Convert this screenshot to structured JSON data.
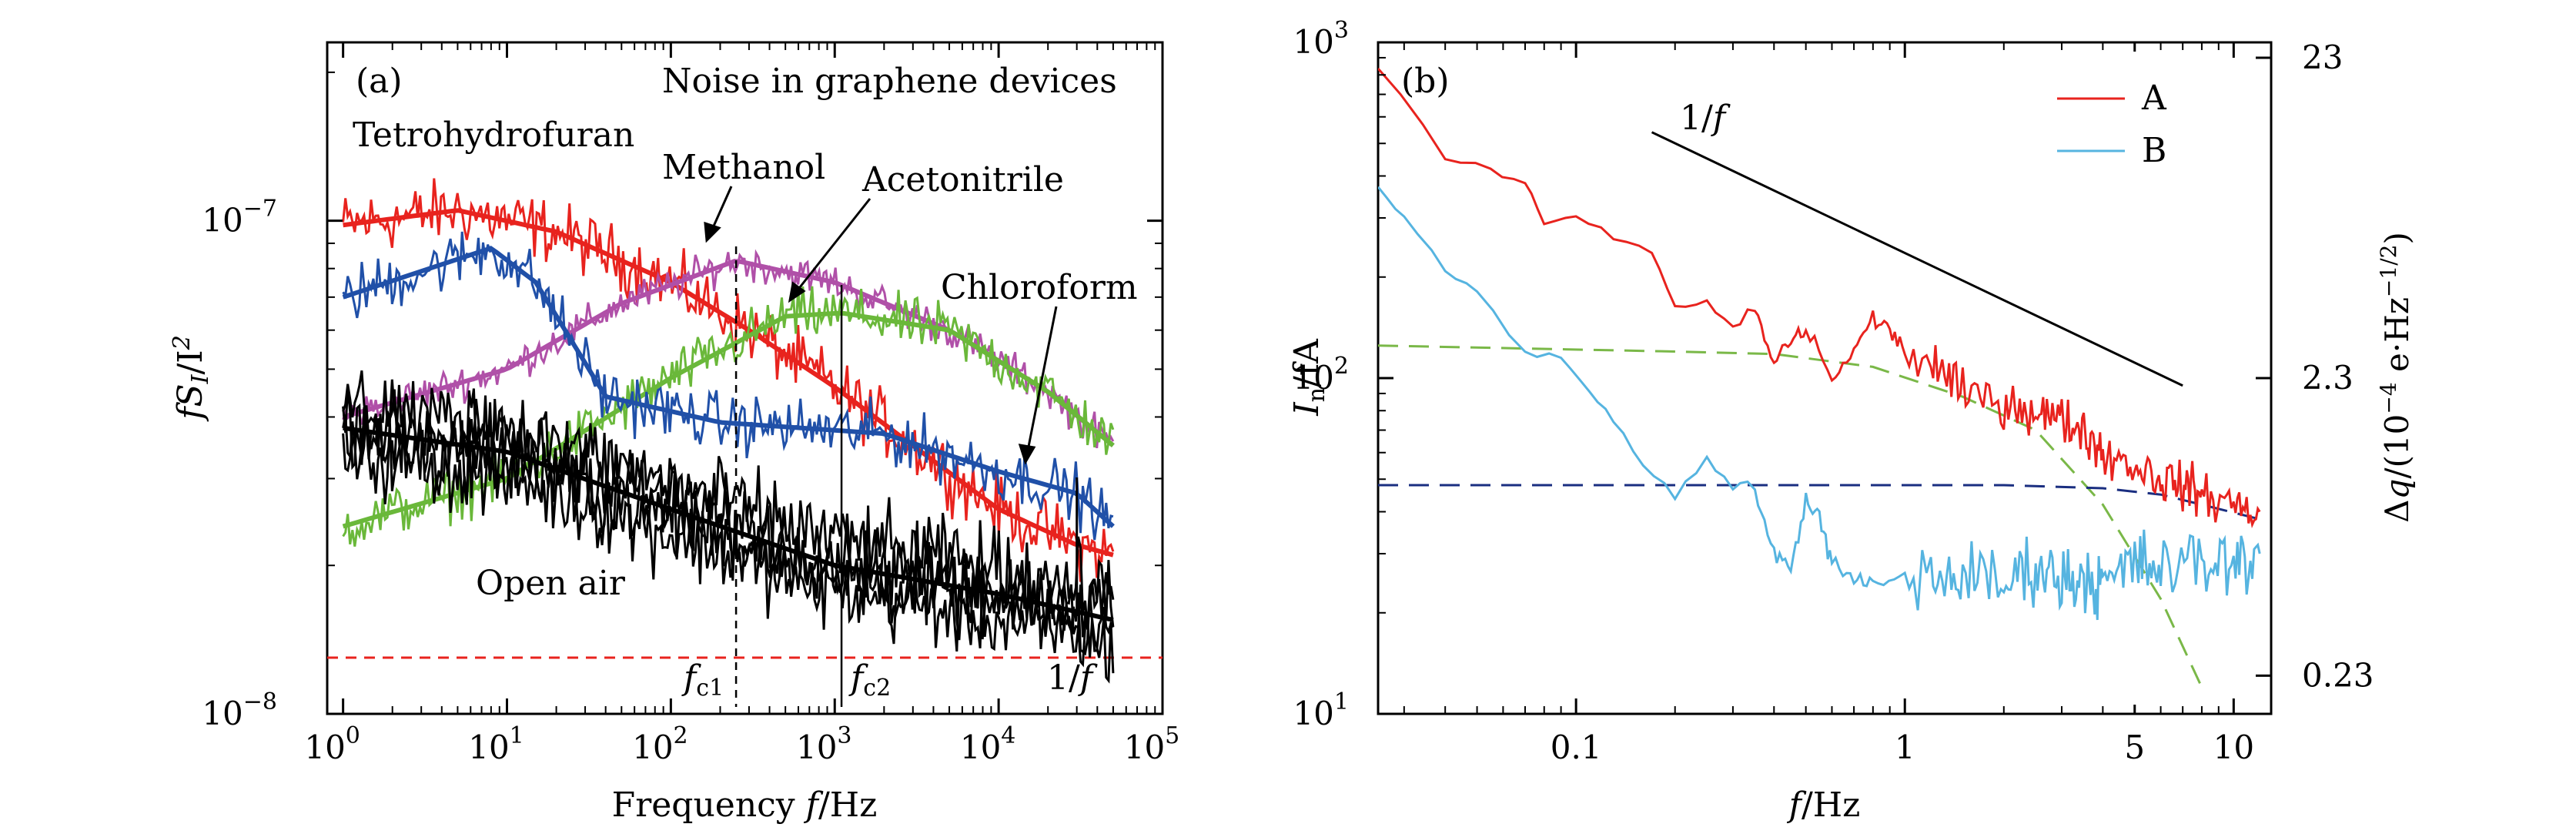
{
  "chart_data": [
    {
      "panel": "(a)",
      "type": "line",
      "title": "Noise in graphene devices",
      "xlabel": "Frequency f/Hz",
      "ylabel": "fS_I/I^2",
      "x_scale": "log",
      "y_scale": "log",
      "xlim": [
        0.8,
        100000
      ],
      "ylim": [
        1e-08,
        2.3e-07
      ],
      "x_ticks": [
        {
          "value": 1,
          "base": "10",
          "exp": "0"
        },
        {
          "value": 10,
          "base": "10",
          "exp": "1"
        },
        {
          "value": 100,
          "base": "10",
          "exp": "2"
        },
        {
          "value": 1000,
          "base": "10",
          "exp": "3"
        },
        {
          "value": 10000,
          "base": "10",
          "exp": "4"
        },
        {
          "value": 100000,
          "base": "10",
          "exp": "5"
        }
      ],
      "y_ticks": [
        {
          "value": 1e-08,
          "base": "10",
          "exp": "−8"
        },
        {
          "value": 1e-07,
          "base": "10",
          "exp": "−7"
        }
      ],
      "series": [
        {
          "name": "Tetrohydrofuran",
          "color": "#e8231e",
          "noise": 0.055,
          "fit": [
            [
              1,
              9.8e-08
            ],
            [
              5,
              1.05e-07
            ],
            [
              20,
              9.5e-08
            ],
            [
              100,
              7.5e-08
            ],
            [
              300,
              6e-08
            ],
            [
              1000,
              4.6e-08
            ],
            [
              3000,
              3.5e-08
            ],
            [
              10000,
              2.6e-08
            ],
            [
              30000,
              2.2e-08
            ],
            [
              50000,
              2.1e-08
            ]
          ]
        },
        {
          "name": "Methanol",
          "color": "#b050a8",
          "noise": 0.03,
          "fit": [
            [
              1,
              4e-08
            ],
            [
              10,
              5e-08
            ],
            [
              50,
              6.8e-08
            ],
            [
              250,
              8.3e-08
            ],
            [
              1000,
              7.5e-08
            ],
            [
              5000,
              6e-08
            ],
            [
              20000,
              4.5e-08
            ],
            [
              50000,
              3.5e-08
            ]
          ]
        },
        {
          "name": "Acetonitrile",
          "color": "#6ab83a",
          "noise": 0.045,
          "fit": [
            [
              1,
              2.4e-08
            ],
            [
              10,
              3e-08
            ],
            [
              100,
              4.8e-08
            ],
            [
              500,
              6.4e-08
            ],
            [
              1100,
              6.5e-08
            ],
            [
              5000,
              6e-08
            ],
            [
              20000,
              4.5e-08
            ],
            [
              50000,
              3.5e-08
            ]
          ]
        },
        {
          "name": "Chloroform",
          "color": "#2050a8",
          "noise": 0.05,
          "fit": [
            [
              1,
              7e-08
            ],
            [
              8,
              8.8e-08
            ],
            [
              15,
              7.5e-08
            ],
            [
              40,
              4.4e-08
            ],
            [
              200,
              3.9e-08
            ],
            [
              2000,
              3.7e-08
            ],
            [
              10000,
              3.1e-08
            ],
            [
              30000,
              2.8e-08
            ],
            [
              50000,
              2.4e-08
            ]
          ]
        },
        {
          "name": "Open air",
          "color": "#000000",
          "noise": 0.07,
          "copies": 4,
          "fit": [
            [
              1,
              3.8e-08
            ],
            [
              10,
              3.4e-08
            ],
            [
              100,
              2.6e-08
            ],
            [
              1000,
              2e-08
            ],
            [
              10000,
              1.75e-08
            ],
            [
              50000,
              1.55e-08
            ]
          ]
        }
      ],
      "reference_line": {
        "name": "1/f",
        "value": 1.3e-08,
        "color": "#e8231e"
      },
      "markers": [
        {
          "label_main": "f",
          "label_sub": "c1",
          "x": 250
        },
        {
          "label_main": "f",
          "label_sub": "c2",
          "x": 1100
        }
      ]
    },
    {
      "panel": "(b)",
      "type": "line",
      "xlabel": "f/Hz",
      "ylabel": "I_n/fA",
      "ylabel_right": "Δq/(10^−4 e·Hz^−1/2)",
      "x_scale": "log",
      "y_scale": "log",
      "xlim": [
        0.025,
        13
      ],
      "ylim": [
        10,
        1000
      ],
      "x_ticks": [
        "0.1",
        "1",
        "5",
        "10"
      ],
      "y_ticks": [
        {
          "value": 10,
          "base": "10",
          "exp": "1"
        },
        {
          "value": 100,
          "base": "10",
          "exp": "2"
        },
        {
          "value": 1000,
          "base": "10",
          "exp": "3"
        }
      ],
      "y_right_ticks": [
        {
          "label": "23",
          "value": 900
        },
        {
          "label": "2.3",
          "value": 100
        },
        {
          "label": "0.23",
          "value": 13
        }
      ],
      "series": [
        {
          "name": "A",
          "color": "#e8231e",
          "points": [
            [
              0.025,
              850
            ],
            [
              0.04,
              460
            ],
            [
              0.055,
              420
            ],
            [
              0.07,
              380
            ],
            [
              0.08,
              290
            ],
            [
              0.1,
              300
            ],
            [
              0.13,
              260
            ],
            [
              0.17,
              240
            ],
            [
              0.2,
              160
            ],
            [
              0.25,
              170
            ],
            [
              0.3,
              140
            ],
            [
              0.35,
              160
            ],
            [
              0.4,
              110
            ],
            [
              0.45,
              130
            ],
            [
              0.5,
              140
            ],
            [
              0.6,
              100
            ],
            [
              0.7,
              120
            ],
            [
              0.8,
              150
            ],
            [
              0.9,
              140
            ],
            [
              1.0,
              120
            ],
            [
              1.2,
              110
            ],
            [
              1.5,
              90
            ],
            [
              2,
              85
            ],
            [
              2.5,
              80
            ],
            [
              3,
              75
            ],
            [
              3.5,
              70
            ],
            [
              4,
              60
            ],
            [
              5,
              55
            ],
            [
              6,
              50
            ],
            [
              7,
              48
            ],
            [
              8,
              45
            ],
            [
              10,
              42
            ],
            [
              12,
              40
            ]
          ]
        },
        {
          "name": "B",
          "color": "#56b4e0",
          "points": [
            [
              0.025,
              370
            ],
            [
              0.03,
              300
            ],
            [
              0.04,
              210
            ],
            [
              0.05,
              180
            ],
            [
              0.07,
              120
            ],
            [
              0.09,
              115
            ],
            [
              0.11,
              90
            ],
            [
              0.13,
              75
            ],
            [
              0.16,
              55
            ],
            [
              0.2,
              45
            ],
            [
              0.25,
              57
            ],
            [
              0.3,
              48
            ],
            [
              0.35,
              46
            ],
            [
              0.4,
              30
            ],
            [
              0.45,
              27
            ],
            [
              0.5,
              44
            ],
            [
              0.55,
              38
            ],
            [
              0.6,
              28
            ],
            [
              0.7,
              25
            ],
            [
              0.8,
              24
            ],
            [
              1.0,
              26
            ],
            [
              1.2,
              25
            ],
            [
              1.5,
              26
            ],
            [
              2,
              24
            ],
            [
              2.5,
              28
            ],
            [
              3,
              25
            ],
            [
              3.5,
              26
            ],
            [
              4,
              24
            ],
            [
              5,
              28
            ],
            [
              6,
              27
            ],
            [
              8,
              28
            ],
            [
              10,
              28
            ],
            [
              12,
              30
            ]
          ]
        }
      ],
      "fits": [
        {
          "color": "#7ab848",
          "points": [
            [
              0.025,
              125
            ],
            [
              0.2,
              120
            ],
            [
              0.4,
              118
            ],
            [
              0.8,
              108
            ],
            [
              1.5,
              88
            ],
            [
              2.5,
              70
            ],
            [
              4,
              42
            ],
            [
              6,
              22
            ],
            [
              8,
              12
            ]
          ]
        },
        {
          "color": "#1a2e80",
          "points": [
            [
              0.025,
              48
            ],
            [
              1,
              48
            ],
            [
              2,
              48
            ],
            [
              4,
              47
            ],
            [
              6,
              45
            ],
            [
              8,
              42
            ],
            [
              12,
              38
            ]
          ]
        }
      ],
      "slope_line": {
        "label_num": "1/",
        "label_var": "f",
        "from": [
          0.17,
          540
        ],
        "to": [
          7,
          95
        ]
      }
    }
  ],
  "labels_a": {
    "panel": "(a)",
    "title": "Noise in graphene devices",
    "tetra": "Tetrohydrofuran",
    "methanol": "Methanol",
    "aceto": "Acetonitrile",
    "chloro": "Chloroform",
    "openair": "Open air",
    "ylabel_1": "fS",
    "ylabel_sub": "I",
    "ylabel_2": "/I",
    "ylabel_sup": "2",
    "xlabel_1": "Frequency ",
    "xlabel_var": "f",
    "xlabel_2": "/Hz",
    "fc1_main": "f",
    "fc1_sub": "c1",
    "fc2_main": "f",
    "fc2_sub": "c2",
    "oneoverf_num": "1/",
    "oneoverf_var": "f"
  },
  "labels_b": {
    "panel": "(b)",
    "legend_a": "A",
    "legend_b": "B",
    "ylabel_var": "I",
    "ylabel_sub": "n",
    "ylabel_2": "/fA",
    "xlabel_var": "f",
    "xlabel_2": "/Hz",
    "yr_1": "Δ",
    "yr_var": "q",
    "yr_2": "/(10",
    "yr_sup1": "−4",
    "yr_3": " e·Hz",
    "yr_sup2": "−1/2",
    "yr_4": ")",
    "slope_num": "1/",
    "slope_var": "f"
  }
}
